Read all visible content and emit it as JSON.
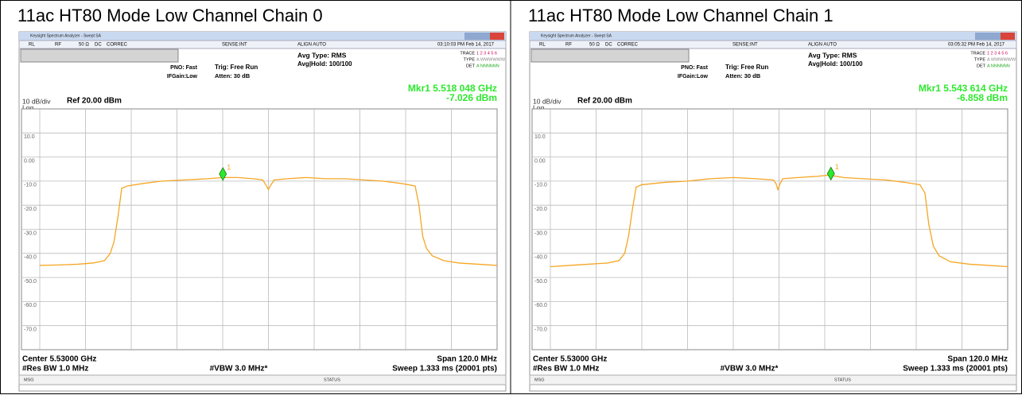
{
  "panels": [
    {
      "title": "11ac HT80 Mode Low Channel Chain 0",
      "header": {
        "app": "Keysight Spectrum Analyzer - Swept SA",
        "rl": "RL",
        "rf": "RF",
        "imp": "50 Ω",
        "dc": "DC",
        "correc": "CORREC",
        "sense": "SENSE:INT",
        "align": "ALIGN AUTO",
        "time": "03:10:03 PM Feb 14, 2017",
        "avg_type": "Avg Type: RMS",
        "avg_hold": "Avg|Hold: 100/100",
        "trace": "TRACE",
        "trace_nums": "1 2 3 4 5 6",
        "type": "TYPE",
        "type_val": "A WWWWWW",
        "det": "DET",
        "det_val": "A NNNNNN",
        "pno": "PNO: Fast",
        "ifgain": "IFGain:Low",
        "trig": "Trig: Free Run",
        "atten": "Atten: 30 dB",
        "mkr_freq": "Mkr1 5.518 048 GHz",
        "mkr_amp": "-7.026 dBm",
        "scale": "10 dB/div",
        "log": "Log",
        "ref": "Ref 20.00 dBm",
        "center": "Center 5.53000 GHz",
        "rbw": "#Res BW 1.0 MHz",
        "vbw": "#VBW 3.0 MHz*",
        "span": "Span 120.0 MHz",
        "sweep": "Sweep  1.333 ms (20001 pts)",
        "msg": "MSG",
        "status": "STATUS"
      },
      "chart": {
        "type": "line",
        "color": "#f5a623",
        "xlim": [
          5470,
          5590
        ],
        "ylim": [
          -80,
          20
        ],
        "yticks": [
          {
            "value": 10,
            "label": "10.0"
          },
          {
            "value": 0,
            "label": "0.00"
          },
          {
            "value": -10,
            "label": "-10.0"
          },
          {
            "value": -20,
            "label": "-20.0"
          },
          {
            "value": -30,
            "label": "-30.0"
          },
          {
            "value": -40,
            "label": "-40.0"
          },
          {
            "value": -50,
            "label": "-50.0"
          },
          {
            "value": -60,
            "label": "-60.0"
          },
          {
            "value": -70,
            "label": "-70.0"
          }
        ],
        "x": [
          5470,
          5475,
          5480,
          5484,
          5487,
          5488.5,
          5489.5,
          5490.5,
          5491.5,
          5493,
          5497,
          5502,
          5508,
          5514,
          5518,
          5522,
          5526,
          5528.5,
          5529.5,
          5530,
          5530.5,
          5531.5,
          5535,
          5540,
          5545,
          5550,
          5555,
          5560,
          5565,
          5568.5,
          5569.5,
          5570.5,
          5571.5,
          5573,
          5576,
          5580,
          5585,
          5590
        ],
        "values": [
          -45,
          -44.8,
          -44.5,
          -44,
          -43,
          -40,
          -35,
          -25,
          -13,
          -12,
          -11,
          -10,
          -9.5,
          -9,
          -8.5,
          -8.5,
          -9,
          -9.5,
          -12,
          -13.5,
          -12,
          -9.5,
          -9,
          -8.5,
          -9,
          -9,
          -9.5,
          -10,
          -11,
          -12,
          -20,
          -33,
          -38,
          -41,
          -43,
          -44,
          -44.5,
          -45
        ],
        "marker": {
          "x": 5518.048,
          "y": -7.026,
          "label": "1"
        }
      }
    },
    {
      "title": "11ac HT80 Mode Low Channel Chain 1",
      "header": {
        "app": "Keysight Spectrum Analyzer - Swept SA",
        "rl": "RL",
        "rf": "RF",
        "imp": "50 Ω",
        "dc": "DC",
        "correc": "CORREC",
        "sense": "SENSE:INT",
        "align": "ALIGN AUTO",
        "time": "03:05:32 PM Feb 14, 2017",
        "avg_type": "Avg Type: RMS",
        "avg_hold": "Avg|Hold: 100/100",
        "trace": "TRACE",
        "trace_nums": "1 2 3 4 5 6",
        "type": "TYPE",
        "type_val": "A WWWWWW",
        "det": "DET",
        "det_val": "A NNNNNN",
        "pno": "PNO: Fast",
        "ifgain": "IFGain:Low",
        "trig": "Trig: Free Run",
        "atten": "Atten: 30 dB",
        "mkr_freq": "Mkr1 5.543 614 GHz",
        "mkr_amp": "-6.858 dBm",
        "scale": "10 dB/div",
        "log": "Log",
        "ref": "Ref 20.00 dBm",
        "center": "Center 5.53000 GHz",
        "rbw": "#Res BW 1.0 MHz",
        "vbw": "#VBW 3.0 MHz*",
        "span": "Span 120.0 MHz",
        "sweep": "Sweep  1.333 ms (20001 pts)",
        "msg": "MSG",
        "status": "STATUS"
      },
      "chart": {
        "type": "line",
        "color": "#f5a623",
        "xlim": [
          5470,
          5590
        ],
        "ylim": [
          -80,
          20
        ],
        "yticks": [
          {
            "value": 10,
            "label": "10.0"
          },
          {
            "value": 0,
            "label": "0.00"
          },
          {
            "value": -10,
            "label": "-10.0"
          },
          {
            "value": -20,
            "label": "-20.0"
          },
          {
            "value": -30,
            "label": "-30.0"
          },
          {
            "value": -40,
            "label": "-40.0"
          },
          {
            "value": -50,
            "label": "-50.0"
          },
          {
            "value": -60,
            "label": "-60.0"
          },
          {
            "value": -70,
            "label": "-70.0"
          }
        ],
        "x": [
          5470,
          5475,
          5480,
          5485,
          5488,
          5489.5,
          5490.5,
          5491.5,
          5492.5,
          5494,
          5500,
          5506,
          5512,
          5518,
          5524,
          5528.5,
          5529.2,
          5529.7,
          5530.3,
          5531,
          5535,
          5540,
          5543,
          5547,
          5552,
          5558,
          5563,
          5567,
          5568.3,
          5569.3,
          5570.5,
          5572,
          5575,
          5580,
          5585,
          5590
        ],
        "values": [
          -45.5,
          -45,
          -44.5,
          -44,
          -43,
          -40,
          -33,
          -22,
          -12.5,
          -11.5,
          -10.5,
          -10,
          -9,
          -8.5,
          -9,
          -9.5,
          -11,
          -13.5,
          -11,
          -9,
          -8.5,
          -8,
          -7.5,
          -8.5,
          -9,
          -9.5,
          -10.5,
          -11.5,
          -15,
          -28,
          -37,
          -41,
          -43.5,
          -44.5,
          -45,
          -45.5
        ],
        "marker": {
          "x": 5543.614,
          "y": -6.858,
          "label": "1"
        }
      }
    }
  ]
}
